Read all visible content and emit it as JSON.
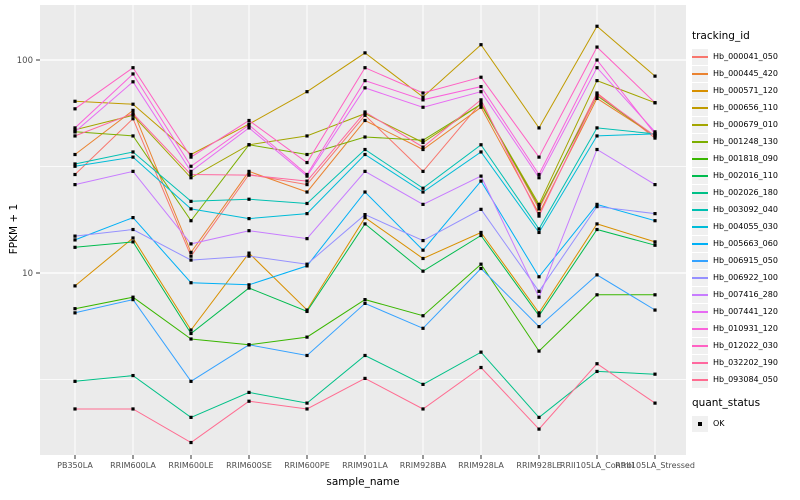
{
  "figure": {
    "background": "#FFFFFF",
    "panel_background": "#EBEBEB",
    "grid_color": "#FFFFFF",
    "tick_color": "#333333",
    "tick_text_color": "#4D4D4D"
  },
  "legend": {
    "tracking_title": "tracking_id",
    "quant_title": "quant_status",
    "quant_ok_label": "OK"
  },
  "chart_data": {
    "type": "line",
    "title": "",
    "xlabel": "sample_name",
    "ylabel": "FPKM + 1",
    "y_scale": "log10",
    "ylim": [
      1.4,
      180
    ],
    "y_ticks": [
      100,
      10
    ],
    "y_minor_ticks": [
      31.62,
      3.162
    ],
    "grid": true,
    "legend_position": "right",
    "marker": {
      "shape": "square",
      "color": "#000000",
      "meaning": "quant_status OK"
    },
    "categories": [
      "PB350LA",
      "RRIM600LA",
      "RRIM600LE",
      "RRIM600SE",
      "RRIM600PE",
      "RRIM901LA",
      "RRIM928BA",
      "RRIM928LA",
      "RRIM928LE",
      "RRII105LA_Control",
      "RRII105LA_Stressed"
    ],
    "series": [
      {
        "name": "Hb_000041_050",
        "color": "#F8766D",
        "values": [
          29,
          53,
          12,
          29,
          26,
          55,
          30,
          63,
          20,
          70,
          43
        ]
      },
      {
        "name": "Hb_000445_420",
        "color": "#EA8331",
        "values": [
          36,
          58,
          12.5,
          30,
          24,
          52,
          38,
          60,
          19,
          66,
          44
        ]
      },
      {
        "name": "Hb_000571_120",
        "color": "#D89000",
        "values": [
          8.7,
          14.6,
          5.4,
          12.4,
          6.7,
          18.2,
          11.7,
          15.5,
          6.5,
          17,
          14
        ]
      },
      {
        "name": "Hb_000656_110",
        "color": "#C09B00",
        "values": [
          64,
          62,
          36,
          50,
          71,
          108,
          67,
          118,
          48,
          144,
          84
        ]
      },
      {
        "name": "Hb_000679_010",
        "color": "#A3A500",
        "values": [
          47,
          55,
          28,
          40,
          44,
          56,
          41,
          62,
          21,
          80,
          63
        ]
      },
      {
        "name": "Hb_001248_130",
        "color": "#7CAE00",
        "values": [
          46,
          44,
          17.6,
          40,
          36,
          43.5,
          42,
          62,
          20.5,
          68,
          44
        ]
      },
      {
        "name": "Hb_001818_090",
        "color": "#39B600",
        "values": [
          6.8,
          7.7,
          4.9,
          4.6,
          5.0,
          7.5,
          6.3,
          11,
          4.3,
          7.9,
          7.9
        ]
      },
      {
        "name": "Hb_002016_110",
        "color": "#00BB4E",
        "values": [
          13.2,
          14,
          5.2,
          8.5,
          6.6,
          17,
          10.2,
          15,
          6.3,
          16,
          13.5
        ]
      },
      {
        "name": "Hb_002026_180",
        "color": "#00C087",
        "values": [
          3.1,
          3.3,
          2.1,
          2.75,
          2.45,
          4.1,
          3.0,
          4.25,
          2.1,
          3.45,
          3.35
        ]
      },
      {
        "name": "Hb_003092_040",
        "color": "#00C0B2",
        "values": [
          32.5,
          37,
          21.7,
          22.2,
          21.2,
          38,
          25,
          40,
          16.1,
          48,
          45
        ]
      },
      {
        "name": "Hb_004055_030",
        "color": "#00BCD8",
        "values": [
          31.7,
          35,
          20,
          18,
          19,
          36,
          24,
          37,
          15.5,
          44,
          45
        ]
      },
      {
        "name": "Hb_005663_060",
        "color": "#00B0F6",
        "values": [
          14.3,
          18.2,
          9.0,
          8.8,
          10.8,
          24,
          12.8,
          27,
          9.6,
          21,
          17.6
        ]
      },
      {
        "name": "Hb_006915_050",
        "color": "#35A2FF",
        "values": [
          6.5,
          7.5,
          3.1,
          4.6,
          4.1,
          7.2,
          5.5,
          10.5,
          5.6,
          9.8,
          6.7
        ]
      },
      {
        "name": "Hb_006922_100",
        "color": "#9590FF",
        "values": [
          14.9,
          16,
          11.5,
          12,
          11,
          18.8,
          14.2,
          19.9,
          8.2,
          20.5,
          19
        ]
      },
      {
        "name": "Hb_007416_280",
        "color": "#C77CFF",
        "values": [
          26,
          30,
          13.7,
          15.8,
          14.5,
          30,
          21,
          28.5,
          7.7,
          38,
          26
        ]
      },
      {
        "name": "Hb_007441_120",
        "color": "#E76BF3",
        "values": [
          46,
          79,
          30,
          48,
          28.5,
          74,
          60,
          71,
          28,
          92,
          46
        ]
      },
      {
        "name": "Hb_010931_120",
        "color": "#FA62DB",
        "values": [
          48,
          86,
          31.7,
          49.5,
          29,
          80,
          65,
          75,
          29,
          100,
          45
        ]
      },
      {
        "name": "Hb_012022_030",
        "color": "#FF61C3",
        "values": [
          59,
          92,
          35,
          52,
          33,
          92,
          70,
          83,
          35,
          115,
          63
        ]
      },
      {
        "name": "Hb_032202_190",
        "color": "#FF689F",
        "values": [
          44,
          56,
          29,
          28.8,
          27,
          57,
          39,
          65,
          18.5,
          69,
          44
        ]
      },
      {
        "name": "Hb_093084_050",
        "color": "#FF6C91",
        "values": [
          2.3,
          2.3,
          1.6,
          2.5,
          2.3,
          3.2,
          2.3,
          3.6,
          1.85,
          3.75,
          2.45
        ]
      }
    ]
  }
}
